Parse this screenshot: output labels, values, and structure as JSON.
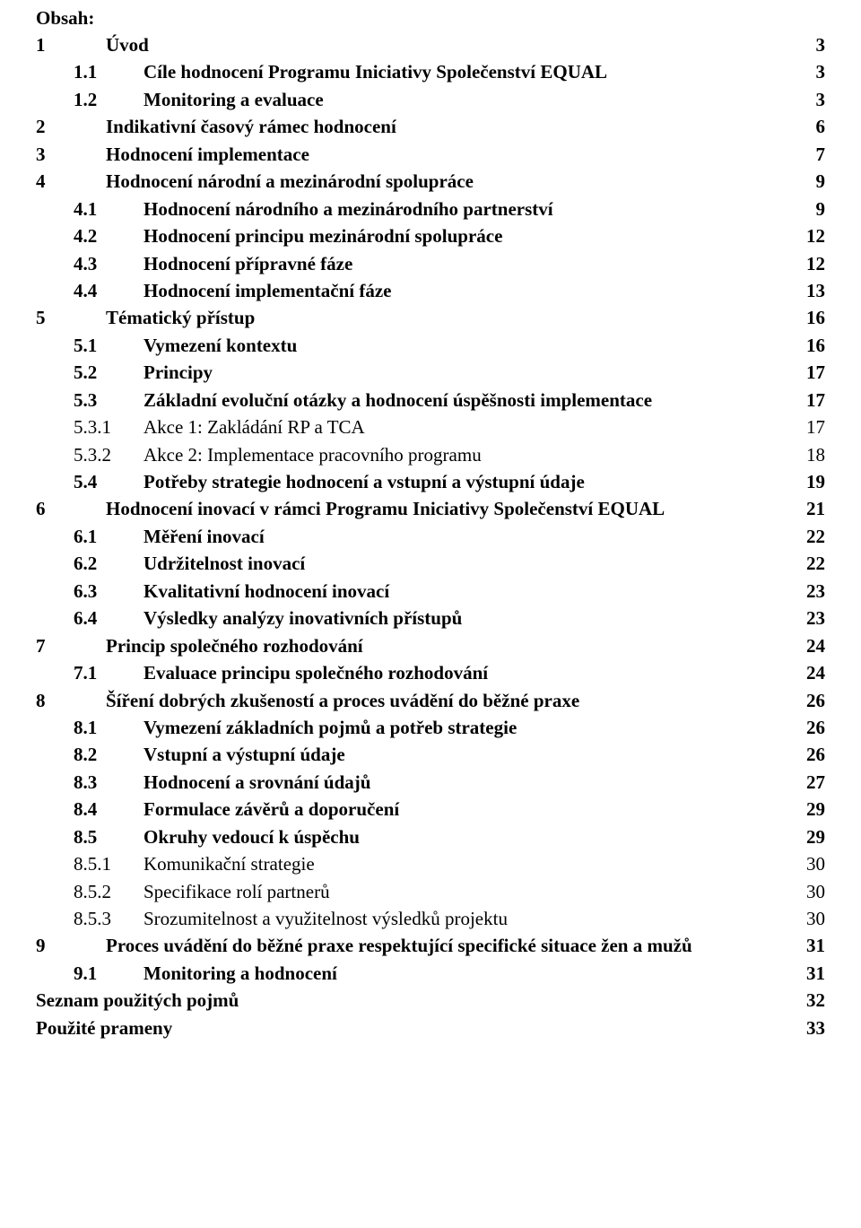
{
  "colors": {
    "text": "#000000",
    "background": "#ffffff"
  },
  "typography": {
    "font_family": "Times New Roman",
    "base_fontsize_pt": 16,
    "bold_weight": 700,
    "normal_weight": 400,
    "line_height": 1.45
  },
  "toc": {
    "heading": "Obsah:",
    "leader_style": "dots",
    "entries": [
      {
        "level": 0,
        "bold": true,
        "num": "1",
        "title": "Úvod",
        "page": "3"
      },
      {
        "level": 1,
        "bold": true,
        "num": "1.1",
        "title": "Cíle hodnocení Programu Iniciativy Společenství EQUAL",
        "page": "3"
      },
      {
        "level": 1,
        "bold": true,
        "num": "1.2",
        "title": "Monitoring a evaluace",
        "page": "3"
      },
      {
        "level": 0,
        "bold": true,
        "num": "2",
        "title": "Indikativní časový rámec hodnocení",
        "page": "6"
      },
      {
        "level": 0,
        "bold": true,
        "num": "3",
        "title": "Hodnocení implementace",
        "page": "7"
      },
      {
        "level": 0,
        "bold": true,
        "num": "4",
        "title": "Hodnocení národní a mezinárodní spolupráce",
        "page": "9"
      },
      {
        "level": 1,
        "bold": true,
        "num": "4.1",
        "title": "Hodnocení národního a mezinárodního partnerství",
        "page": "9"
      },
      {
        "level": 1,
        "bold": true,
        "num": "4.2",
        "title": "Hodnocení principu mezinárodní spolupráce",
        "page": "12"
      },
      {
        "level": 1,
        "bold": true,
        "num": "4.3",
        "title": "Hodnocení přípravné fáze",
        "page": "12"
      },
      {
        "level": 1,
        "bold": true,
        "num": "4.4",
        "title": "Hodnocení implementační fáze",
        "page": "13"
      },
      {
        "level": 0,
        "bold": true,
        "num": "5",
        "title": "Tématický přístup",
        "page": "16"
      },
      {
        "level": 1,
        "bold": true,
        "num": "5.1",
        "title": "Vymezení kontextu",
        "page": "16"
      },
      {
        "level": 1,
        "bold": true,
        "num": "5.2",
        "title": "Principy",
        "page": "17"
      },
      {
        "level": 1,
        "bold": true,
        "num": "5.3",
        "title": "Základní evoluční otázky a hodnocení úspěšnosti implementace",
        "page": "17"
      },
      {
        "level": 2,
        "bold": false,
        "num": "5.3.1",
        "title": "Akce 1: Zakládání RP a TCA",
        "page": "17"
      },
      {
        "level": 2,
        "bold": false,
        "num": "5.3.2",
        "title": "Akce 2: Implementace pracovního programu",
        "page": "18"
      },
      {
        "level": 1,
        "bold": true,
        "num": "5.4",
        "title": "Potřeby strategie hodnocení a vstupní a výstupní údaje",
        "page": "19"
      },
      {
        "level": 0,
        "bold": true,
        "num": "6",
        "title": "Hodnocení inovací v rámci Programu Iniciativy Společenství EQUAL",
        "page": "21"
      },
      {
        "level": 1,
        "bold": true,
        "num": "6.1",
        "title": "Měření inovací",
        "page": "22"
      },
      {
        "level": 1,
        "bold": true,
        "num": "6.2",
        "title": "Udržitelnost inovací",
        "page": "22"
      },
      {
        "level": 1,
        "bold": true,
        "num": "6.3",
        "title": "Kvalitativní hodnocení inovací",
        "page": "23"
      },
      {
        "level": 1,
        "bold": true,
        "num": "6.4",
        "title": "Výsledky analýzy inovativních přístupů",
        "page": "23"
      },
      {
        "level": 0,
        "bold": true,
        "num": "7",
        "title": "Princip společného rozhodování",
        "page": "24"
      },
      {
        "level": 1,
        "bold": true,
        "num": "7.1",
        "title": "Evaluace principu společného rozhodování",
        "page": "24"
      },
      {
        "level": 0,
        "bold": true,
        "num": "8",
        "title": "Šíření dobrých zkušeností a proces uvádění do běžné praxe",
        "page": "26"
      },
      {
        "level": 1,
        "bold": true,
        "num": "8.1",
        "title": "Vymezení základních pojmů a potřeb strategie",
        "page": "26"
      },
      {
        "level": 1,
        "bold": true,
        "num": "8.2",
        "title": "Vstupní a výstupní údaje",
        "page": "26"
      },
      {
        "level": 1,
        "bold": true,
        "num": "8.3",
        "title": "Hodnocení a srovnání údajů",
        "page": "27"
      },
      {
        "level": 1,
        "bold": true,
        "num": "8.4",
        "title": "Formulace závěrů a doporučení",
        "page": "29"
      },
      {
        "level": 1,
        "bold": true,
        "num": "8.5",
        "title": "Okruhy vedoucí k úspěchu",
        "page": "29"
      },
      {
        "level": 2,
        "bold": false,
        "num": "8.5.1",
        "title": "Komunikační strategie",
        "page": "30"
      },
      {
        "level": 2,
        "bold": false,
        "num": "8.5.2",
        "title": "Specifikace rolí partnerů",
        "page": "30"
      },
      {
        "level": 2,
        "bold": false,
        "num": "8.5.3",
        "title": "Srozumitelnost a využitelnost výsledků projektu",
        "page": "30"
      },
      {
        "level": 0,
        "bold": true,
        "num": "9",
        "title": "Proces uvádění do běžné praxe respektující specifické situace žen a mužů",
        "page": "31"
      },
      {
        "level": 1,
        "bold": true,
        "num": "9.1",
        "title": "Monitoring a hodnocení",
        "page": "31"
      },
      {
        "level": -1,
        "bold": true,
        "num": "",
        "title": "Seznam použitých pojmů",
        "page": "32"
      },
      {
        "level": -1,
        "bold": true,
        "num": "",
        "title": "Použité prameny",
        "page": "33"
      }
    ]
  }
}
